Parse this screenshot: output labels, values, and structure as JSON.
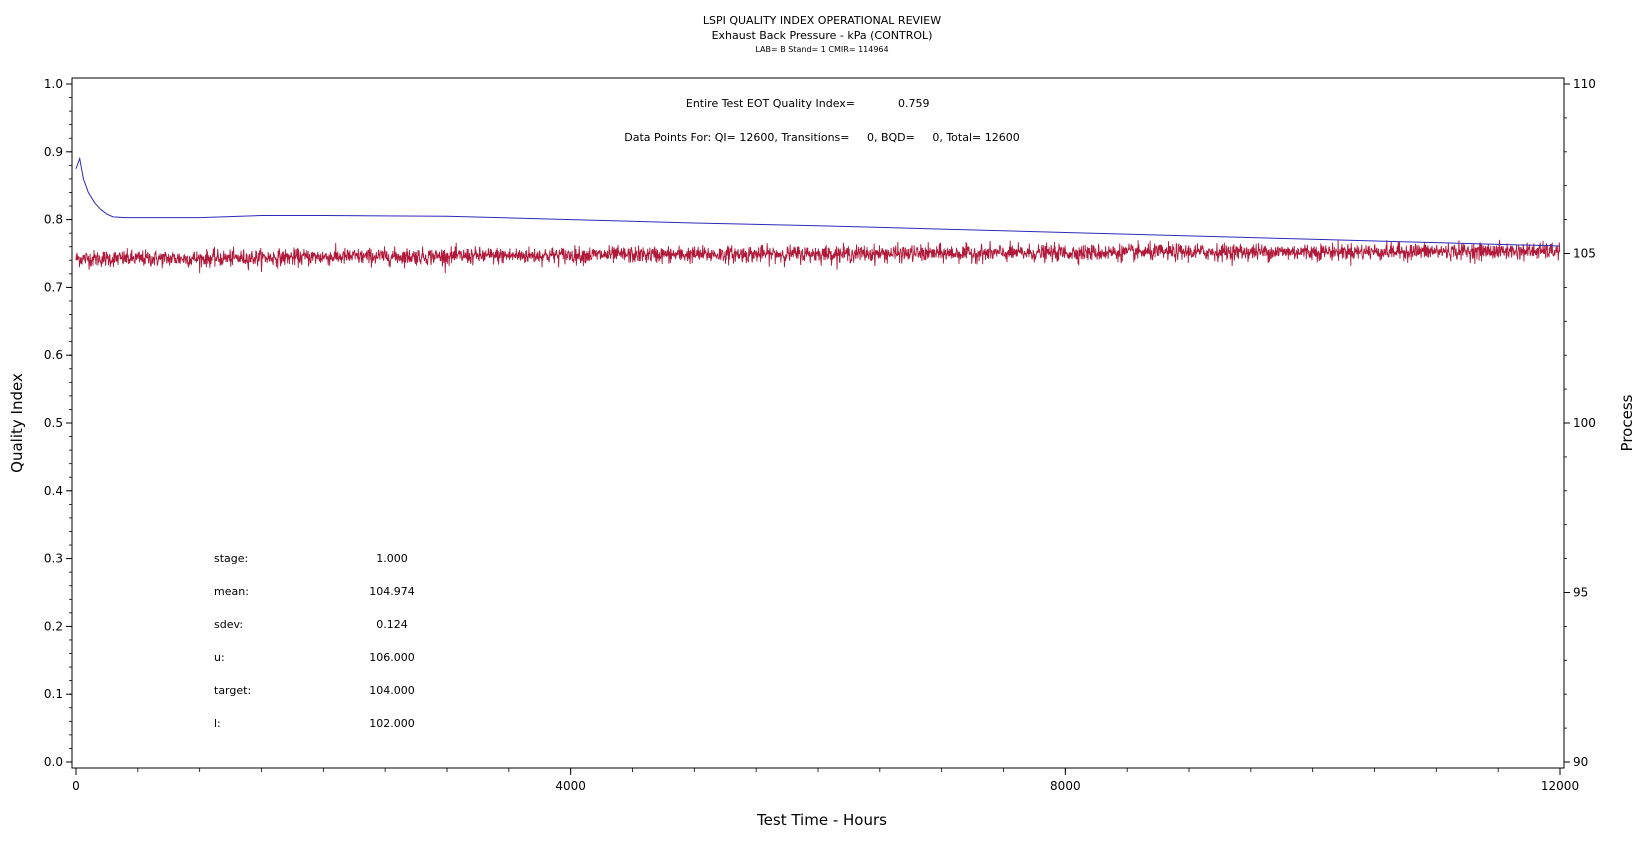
{
  "chart_data": {
    "type": "line",
    "title": "LSPI QUALITY INDEX OPERATIONAL REVIEW",
    "subtitle": "Exhaust Back Pressure - kPa (CONTROL)",
    "subtitle2": "LAB= B Stand= 1 CMIR= 114964",
    "xlabel": "Test Time - Hours",
    "ylabel_left": "Quality Index",
    "ylabel_right": "Process",
    "xlim": [
      0,
      12000
    ],
    "ylim_left": [
      0.0,
      1.0
    ],
    "ylim_right": [
      90,
      110
    ],
    "x_ticks": [
      "0",
      "4000",
      "8000",
      "12000"
    ],
    "y_ticks_left": [
      "0.0",
      "0.1",
      "0.2",
      "0.3",
      "0.4",
      "0.5",
      "0.6",
      "0.7",
      "0.8",
      "0.9",
      "1.0"
    ],
    "y_ticks_right": [
      "90",
      "95",
      "100",
      "105",
      "110"
    ],
    "grid": false,
    "annotations": {
      "eot_label": "Entire Test EOT Quality Index=",
      "eot_value": "0.759",
      "points_line": "Data Points For: QI= 12600, Transitions=     0, BQD=     0, Total= 12600"
    },
    "stats": [
      {
        "label": "stage:",
        "value": "1.000"
      },
      {
        "label": "mean:",
        "value": "104.974"
      },
      {
        "label": "sdev:",
        "value": "0.124"
      },
      {
        "label": "u:",
        "value": "106.000"
      },
      {
        "label": "target:",
        "value": "104.000"
      },
      {
        "label": "l:",
        "value": "102.000"
      }
    ],
    "series": [
      {
        "name": "Quality Index",
        "axis": "left",
        "color": "#2b2bb8",
        "x": [
          0,
          30,
          60,
          100,
          150,
          200,
          250,
          300,
          400,
          600,
          1000,
          1500,
          2000,
          3000,
          4000,
          5000,
          6000,
          7000,
          8000,
          9000,
          10000,
          11000,
          12000
        ],
        "y": [
          0.875,
          0.89,
          0.86,
          0.84,
          0.825,
          0.815,
          0.808,
          0.804,
          0.803,
          0.803,
          0.803,
          0.806,
          0.806,
          0.805,
          0.8,
          0.795,
          0.791,
          0.786,
          0.781,
          0.776,
          0.771,
          0.766,
          0.761
        ]
      },
      {
        "name": "Process",
        "axis": "right",
        "color": "#b0193a",
        "x": [
          0,
          1000,
          2000,
          3000,
          4000,
          5000,
          6000,
          7000,
          8000,
          9000,
          10000,
          11000,
          12000
        ],
        "y": [
          104.85,
          104.85,
          104.9,
          104.92,
          104.95,
          104.97,
          104.99,
          105.0,
          105.02,
          105.04,
          105.05,
          105.06,
          105.07
        ],
        "noise_sd": 0.124
      }
    ]
  }
}
